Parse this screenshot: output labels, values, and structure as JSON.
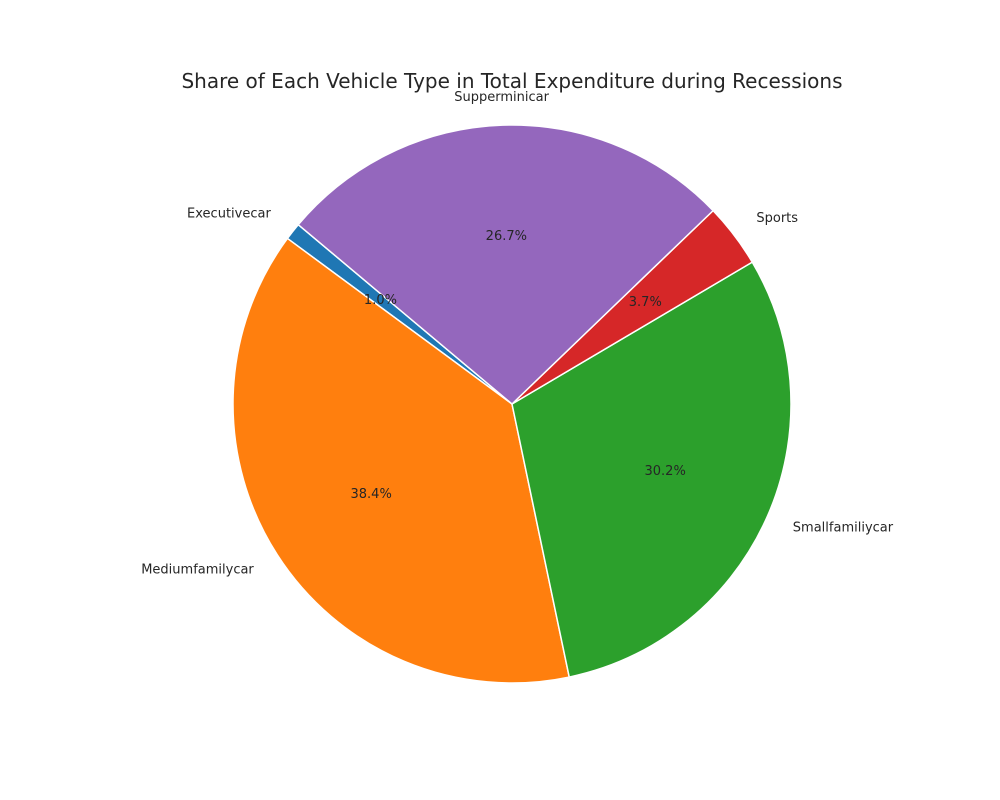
{
  "chart_data": {
    "type": "pie",
    "title": "Share of Each Vehicle Type in Total Expenditure during Recessions",
    "start_angle_deg": 140,
    "direction": "counterclockwise",
    "slices": [
      {
        "label": "Executivecar",
        "value": 1.0,
        "pct_text": "1.0%",
        "color": "#1f77b4"
      },
      {
        "label": "Mediumfamilycar",
        "value": 38.4,
        "pct_text": "38.4%",
        "color": "#ff7f0e"
      },
      {
        "label": "Smallfamiliycar",
        "value": 30.2,
        "pct_text": "30.2%",
        "color": "#2ca02c"
      },
      {
        "label": "Sports",
        "value": 3.7,
        "pct_text": "3.7%",
        "color": "#d62728"
      },
      {
        "label": "Supperminicar",
        "value": 26.7,
        "pct_text": "26.7%",
        "color": "#9467bd"
      }
    ]
  }
}
